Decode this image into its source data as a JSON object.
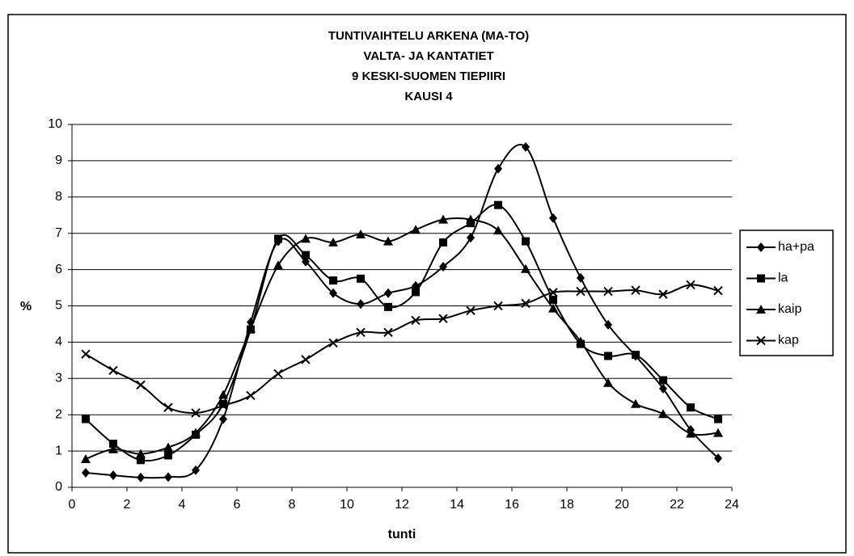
{
  "chart_data": {
    "type": "line",
    "title": [
      "TUNTIVAIHTELU ARKENA (MA-TO)",
      "VALTA- JA KANTATIET",
      "9 KESKI-SUOMEN TIEPIIRI",
      "KAUSI 4"
    ],
    "x_label": "tunti",
    "y_label": "%",
    "x": [
      0.5,
      1.5,
      2.5,
      3.5,
      4.5,
      5.5,
      6.5,
      7.5,
      8.5,
      9.5,
      10.5,
      11.5,
      12.5,
      13.5,
      14.5,
      15.5,
      16.5,
      17.5,
      18.5,
      19.5,
      20.5,
      21.5,
      22.5,
      23.5
    ],
    "series": [
      {
        "name": "ha+pa",
        "color": "#000000",
        "marker": "diamond",
        "values": [
          0.4,
          0.33,
          0.27,
          0.28,
          0.47,
          1.88,
          4.55,
          6.78,
          6.22,
          5.35,
          5.05,
          5.35,
          5.55,
          6.08,
          6.88,
          8.78,
          9.38,
          7.42,
          5.77,
          4.48,
          3.62,
          2.72,
          1.58,
          0.8
        ]
      },
      {
        "name": "la",
        "color": "#000000",
        "marker": "square",
        "values": [
          1.88,
          1.2,
          0.75,
          0.88,
          1.45,
          2.3,
          4.35,
          6.85,
          6.4,
          5.7,
          5.75,
          4.97,
          5.38,
          6.75,
          7.28,
          7.78,
          6.78,
          5.17,
          3.95,
          3.62,
          3.65,
          2.95,
          2.2,
          1.88
        ]
      },
      {
        "name": "kaip",
        "color": "#000000",
        "marker": "triangle",
        "values": [
          0.78,
          1.05,
          0.92,
          1.1,
          1.5,
          2.55,
          4.38,
          6.12,
          6.85,
          6.75,
          6.97,
          6.78,
          7.1,
          7.38,
          7.38,
          7.08,
          6.02,
          4.93,
          4.02,
          2.88,
          2.3,
          2.02,
          1.48,
          1.5
        ]
      },
      {
        "name": "kap",
        "color": "#000000",
        "marker": "x",
        "values": [
          3.67,
          3.22,
          2.82,
          2.2,
          2.05,
          2.25,
          2.53,
          3.13,
          3.52,
          3.98,
          4.27,
          4.27,
          4.6,
          4.65,
          4.87,
          5.0,
          5.07,
          5.37,
          5.4,
          5.4,
          5.43,
          5.32,
          5.58,
          5.42
        ]
      }
    ],
    "xlim": [
      0,
      24
    ],
    "xticks": [
      0,
      2,
      4,
      6,
      8,
      10,
      12,
      14,
      16,
      18,
      20,
      22,
      24
    ],
    "ylim": [
      0,
      10
    ],
    "yticks": [
      0,
      1,
      2,
      3,
      4,
      5,
      6,
      7,
      8,
      9,
      10
    ],
    "grid": true,
    "smooth": true,
    "legend": "right"
  }
}
